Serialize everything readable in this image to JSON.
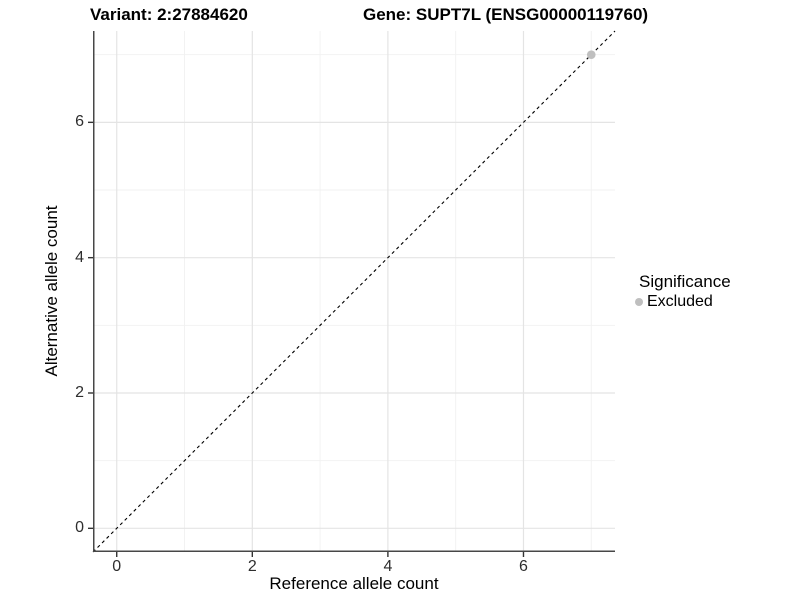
{
  "header": {
    "title_variant": "Variant: 2:27884620",
    "title_gene": "Gene: SUPT7L (ENSG00000119760)"
  },
  "legend": {
    "title": "Significance",
    "position": "right",
    "items": [
      {
        "label": "Excluded",
        "color": "#bfbfbf"
      }
    ]
  },
  "chart_data": {
    "type": "scatter",
    "title": "Variant: 2:27884620    Gene: SUPT7L (ENSG00000119760)",
    "xlabel": "Reference allele count",
    "ylabel": "Alternative allele count",
    "xlim": [
      -0.35,
      7.35
    ],
    "ylim": [
      -0.35,
      7.35
    ],
    "x_major_ticks": [
      0,
      2,
      4,
      6
    ],
    "x_minor_ticks": [
      1,
      3,
      5,
      7
    ],
    "y_major_ticks": [
      0,
      2,
      4,
      6
    ],
    "y_minor_ticks": [
      1,
      3,
      5,
      7
    ],
    "grid": true,
    "points": [
      {
        "x": 7,
        "y": 7,
        "significance": "Excluded",
        "color": "#bfbfbf"
      }
    ],
    "reference_line": {
      "type": "identity y=x",
      "style": "dashed",
      "color": "#000000"
    },
    "colors": {
      "panel_background": "#ffffff",
      "grid_major": "#e4e4e4",
      "grid_minor": "#f1f1f1",
      "axis_line": "#474747",
      "tick_mark": "#333333"
    }
  }
}
